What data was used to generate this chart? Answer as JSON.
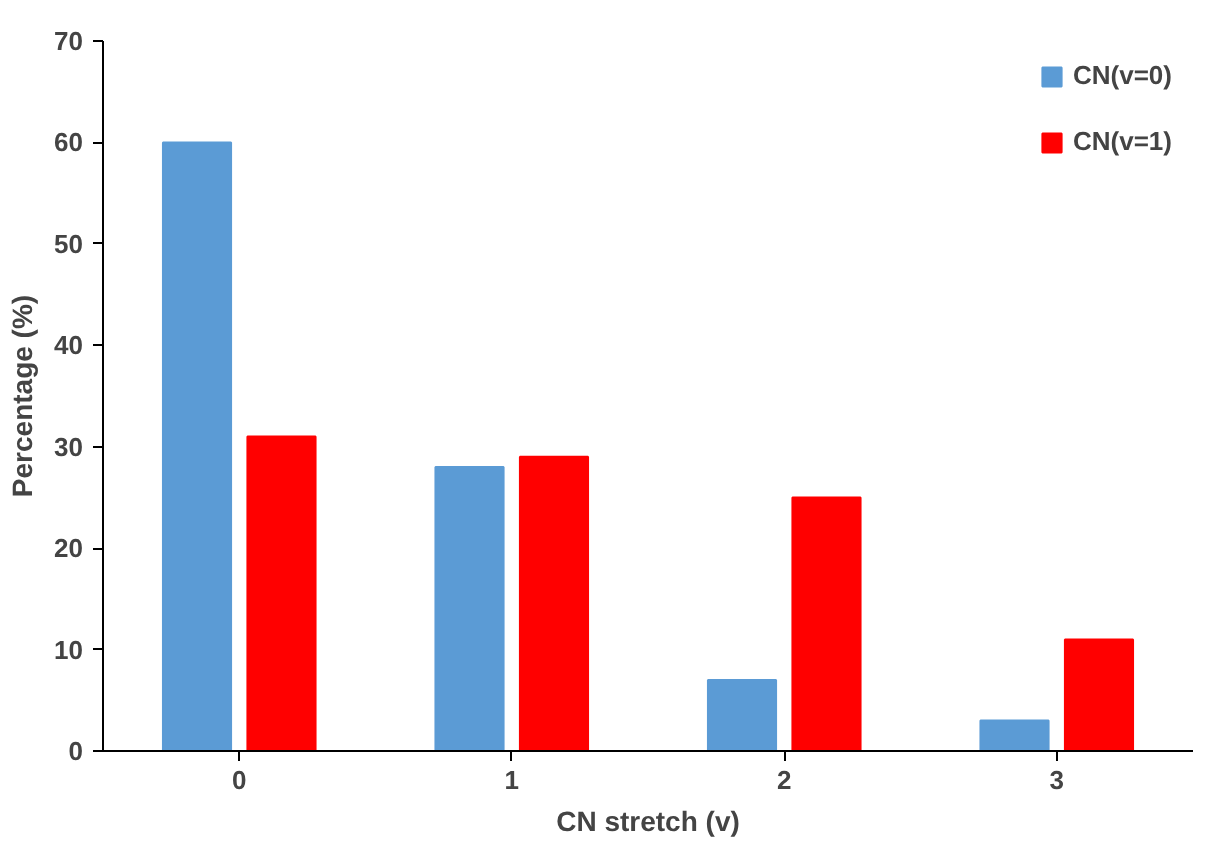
{
  "chart_data": {
    "type": "bar",
    "xlabel": "CN stretch (v)",
    "ylabel": "Percentage (%)",
    "categories": [
      "0",
      "1",
      "2",
      "3"
    ],
    "series": [
      {
        "name": "CN(v=0)",
        "color": "#5b9bd5",
        "values": [
          60,
          28,
          7,
          3
        ]
      },
      {
        "name": "CN(v=1)",
        "color": "#ff0000",
        "values": [
          31,
          29,
          25,
          11
        ]
      }
    ],
    "ylim": [
      0,
      70
    ],
    "yticks": [
      0,
      10,
      20,
      30,
      40,
      50,
      60,
      70
    ],
    "grid": false,
    "legend": "top right"
  }
}
